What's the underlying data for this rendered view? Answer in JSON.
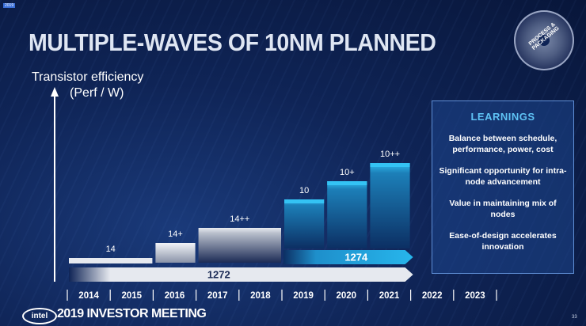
{
  "slide": {
    "title": "MULTIPLE-WAVES OF 10NM PLANNED",
    "badge_text": "PROCESS & PACKAGING",
    "live_tag": "2019",
    "ylabel_line1": "Transistor efficiency",
    "ylabel_line2": "(Perf / W)",
    "footer_logo": "intel",
    "footer_text": "2019 INVESTOR MEETING",
    "page_number": "33"
  },
  "learnings": {
    "title": "LEARNINGS",
    "items": [
      "Balance between schedule, performance, power, cost",
      "Significant opportunity for intra-node advancement",
      "Value in maintaining mix of nodes",
      "Ease-of-design accelerates innovation"
    ]
  },
  "colors": {
    "bg": "#0f2456",
    "node14": "#e6e9ef",
    "node10": "#27b6ec",
    "arrow": "#e6e9ef",
    "accent": "#5fc3f5"
  },
  "chart_data": {
    "type": "bar",
    "years": [
      "2014",
      "2015",
      "2016",
      "2017",
      "2018",
      "2019",
      "2020",
      "2021",
      "2022",
      "2023"
    ],
    "steps": [
      {
        "label": "14",
        "start_year": "2014",
        "end_year": "2015",
        "level": 1,
        "family": "14nm"
      },
      {
        "label": "14+",
        "start_year": "2016",
        "end_year": "2016",
        "level": 2,
        "family": "14nm"
      },
      {
        "label": "14++",
        "start_year": "2017",
        "end_year": "2018",
        "level": 3,
        "family": "14nm"
      },
      {
        "label": "10",
        "start_year": "2019",
        "end_year": "2019",
        "level": 4,
        "family": "10nm"
      },
      {
        "label": "10+",
        "start_year": "2020",
        "end_year": "2020",
        "level": 5,
        "family": "10nm"
      },
      {
        "label": "10++",
        "start_year": "2021",
        "end_year": "2021",
        "level": 6,
        "family": "10nm"
      }
    ],
    "arrows": [
      {
        "label": "1272",
        "start_year": "2014",
        "end_year": "2021"
      },
      {
        "label": "1274",
        "start_year": "2019",
        "end_year": "2021"
      }
    ]
  }
}
